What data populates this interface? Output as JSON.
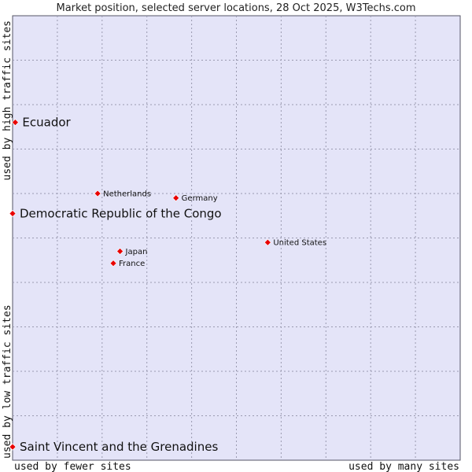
{
  "chart_data": {
    "type": "scatter",
    "title": "Market position, selected server locations, 28 Oct 2025, W3Techs.com",
    "xlabel_low": "used by fewer sites",
    "xlabel_high": "used by many sites",
    "ylabel_low": "used by low traffic sites",
    "ylabel_high": "used by high traffic sites",
    "xlim": [
      0,
      100
    ],
    "ylim": [
      0,
      100
    ],
    "grid": true,
    "points": [
      {
        "label": "Ecuador",
        "x": 0.6,
        "y": 76,
        "emphasis": true
      },
      {
        "label": "Democratic Republic of the Congo",
        "x": 0,
        "y": 55.5,
        "emphasis": true
      },
      {
        "label": "Netherlands",
        "x": 19,
        "y": 60,
        "emphasis": false
      },
      {
        "label": "Germany",
        "x": 36.5,
        "y": 59,
        "emphasis": false
      },
      {
        "label": "United States",
        "x": 57,
        "y": 49,
        "emphasis": false
      },
      {
        "label": "Japan",
        "x": 24,
        "y": 47,
        "emphasis": false
      },
      {
        "label": "France",
        "x": 22.5,
        "y": 44.3,
        "emphasis": false
      },
      {
        "label": "Saint Vincent and the Grenadines",
        "x": 0,
        "y": 3,
        "emphasis": true
      }
    ]
  }
}
